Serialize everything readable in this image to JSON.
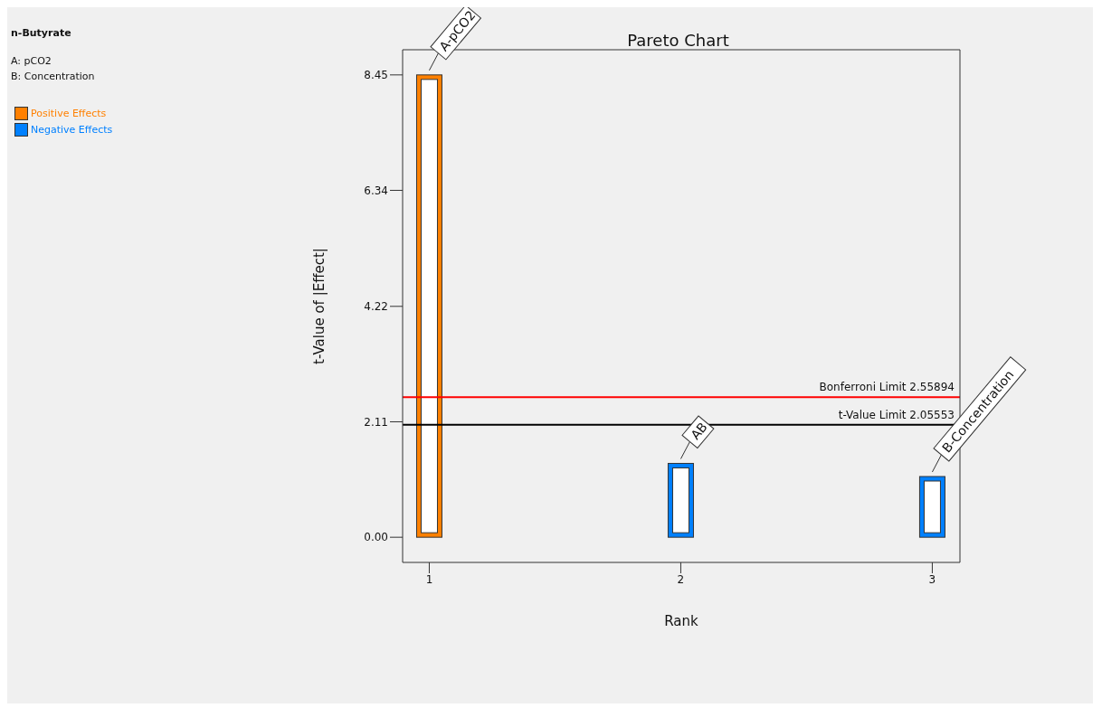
{
  "chart_data": {
    "type": "bar",
    "title": "Pareto Chart",
    "xlabel": "Rank",
    "ylabel": "t-Value of |Effect|",
    "x": [
      1,
      2,
      3
    ],
    "series": [
      {
        "name": "Positive Effects",
        "color": "#ff8000",
        "values": [
          8.45,
          null,
          null
        ]
      },
      {
        "name": "Negative Effects",
        "color": "#0080ff",
        "values": [
          null,
          1.35,
          1.11
        ]
      }
    ],
    "xlim": [
      0.894,
      3.11
    ],
    "xticks": [
      1,
      2,
      3
    ],
    "ylim": [
      -0.46,
      8.91
    ],
    "yticks": [
      {
        "value": 0,
        "label": "0.00"
      },
      {
        "value": 2.11,
        "label": "2.11"
      },
      {
        "value": 4.22,
        "label": "4.22"
      },
      {
        "value": 6.34,
        "label": "6.34"
      },
      {
        "value": 8.45,
        "label": "8.45"
      }
    ],
    "ref_lines": [
      {
        "axis": "y",
        "value": 2.55894,
        "label": "Bonferroni Limit 2.55894",
        "color": "#ff0000"
      },
      {
        "axis": "y",
        "value": 2.05553,
        "label": "t-Value Limit 2.05553",
        "color": "#000000"
      }
    ],
    "annotations": [
      "n-Butyrate",
      "A: pCO2",
      "B: Concentration",
      {
        "text": "A-pCO2",
        "x": 1,
        "y": 8.45
      },
      {
        "text": "AB",
        "x": 2,
        "y": 1.35
      },
      {
        "text": "B-Concentration",
        "x": 3,
        "y": 1.11
      }
    ],
    "legend": "top left",
    "grid": false
  }
}
